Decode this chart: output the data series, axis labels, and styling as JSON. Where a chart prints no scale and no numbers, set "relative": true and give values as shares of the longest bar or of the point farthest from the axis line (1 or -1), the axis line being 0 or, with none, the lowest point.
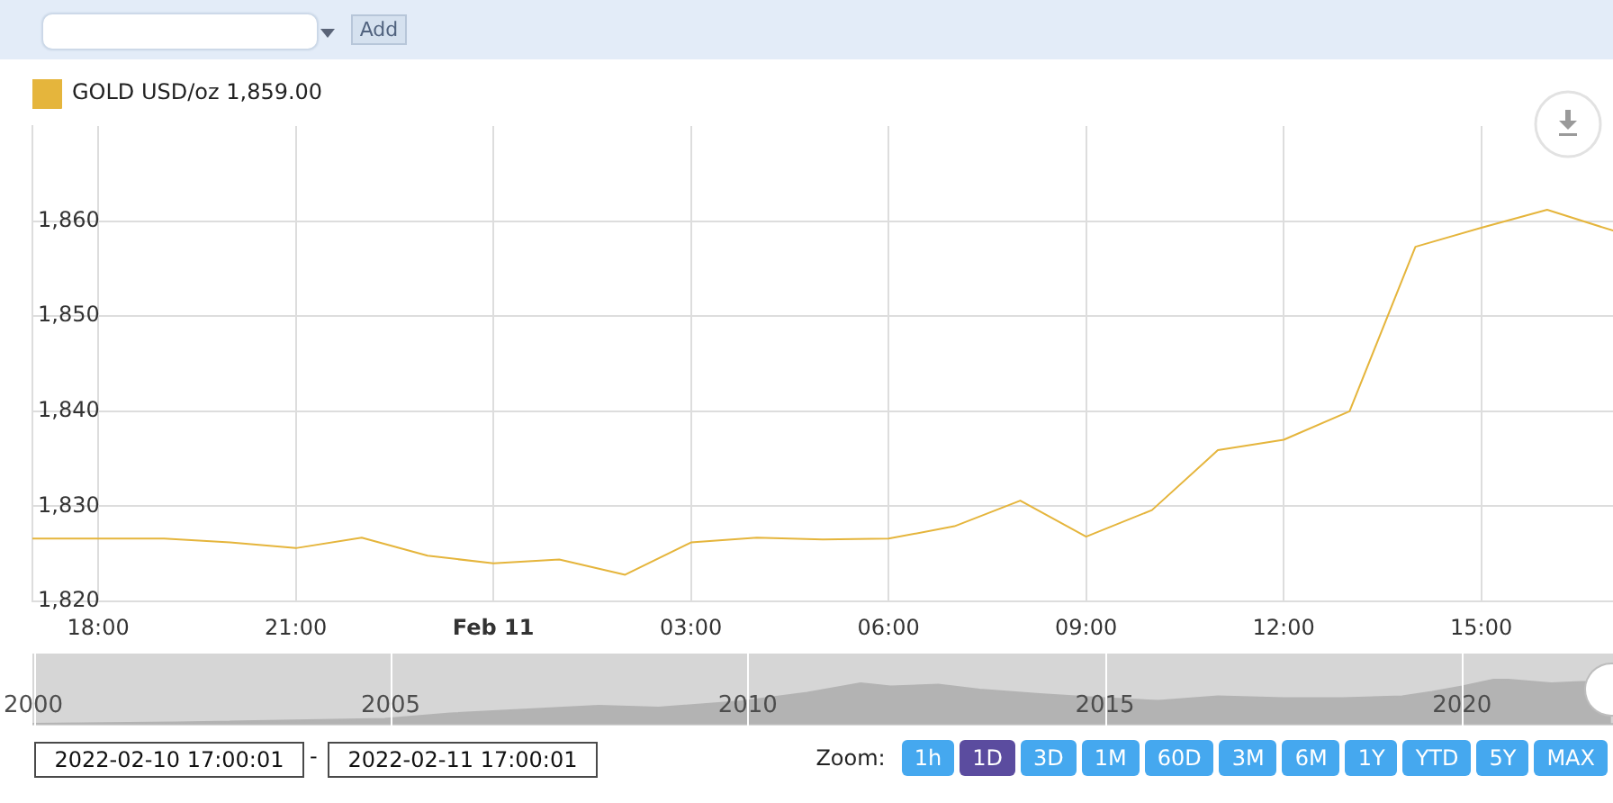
{
  "chart_data": [
    {
      "type": "line",
      "x": [
        "2022-02-10T17:00",
        "2022-02-10T18:00",
        "2022-02-10T19:00",
        "2022-02-10T20:00",
        "2022-02-10T21:00",
        "2022-02-10T22:00",
        "2022-02-10T23:00",
        "2022-02-11T00:00",
        "2022-02-11T01:00",
        "2022-02-11T02:00",
        "2022-02-11T03:00",
        "2022-02-11T04:00",
        "2022-02-11T05:00",
        "2022-02-11T06:00",
        "2022-02-11T07:00",
        "2022-02-11T08:00",
        "2022-02-11T09:00",
        "2022-02-11T10:00",
        "2022-02-11T11:00",
        "2022-02-11T12:00",
        "2022-02-11T13:00",
        "2022-02-11T14:00",
        "2022-02-11T15:00",
        "2022-02-11T16:00",
        "2022-02-11T17:00"
      ],
      "series": [
        {
          "name": "GOLD USD/oz 1,859.00",
          "color": "#e5b53c",
          "values": [
            1826.6,
            1826.6,
            1826.6,
            1826.2,
            1825.6,
            1826.7,
            1824.8,
            1824.0,
            1824.4,
            1822.8,
            1826.2,
            1826.7,
            1826.5,
            1826.6,
            1827.9,
            1830.6,
            1826.8,
            1829.6,
            1835.9,
            1837.0,
            1840.0,
            1857.3,
            1859.3,
            1861.2,
            1859.0
          ]
        }
      ],
      "xlim": [
        "2022-02-10T17:00",
        "2022-02-11T17:00"
      ],
      "xticks": [
        {
          "value": "2022-02-10T18:00",
          "label": "18:00"
        },
        {
          "value": "2022-02-10T21:00",
          "label": "21:00"
        },
        {
          "value": "2022-02-11T00:00",
          "label": "Feb 11"
        },
        {
          "value": "2022-02-11T03:00",
          "label": "03:00"
        },
        {
          "value": "2022-02-11T06:00",
          "label": "06:00"
        },
        {
          "value": "2022-02-11T09:00",
          "label": "09:00"
        },
        {
          "value": "2022-02-11T12:00",
          "label": "12:00"
        },
        {
          "value": "2022-02-11T15:00",
          "label": "15:00"
        }
      ],
      "ylim": [
        1820,
        1870
      ],
      "yticks": [
        {
          "value": 1820,
          "label": "1,820"
        },
        {
          "value": 1830,
          "label": "1,830"
        },
        {
          "value": 1840,
          "label": "1,840"
        },
        {
          "value": 1850,
          "label": "1,850"
        },
        {
          "value": 1860,
          "label": "1,860"
        }
      ],
      "grid": true,
      "legend": "top left",
      "marker": "none",
      "annotations": [
        "Add"
      ]
    },
    {
      "type": "area",
      "relative": true,
      "x": [
        "2000-01",
        "2002-01",
        "2004-12",
        "2005-11",
        "2007-12",
        "2008-10",
        "2009-12",
        "2010-11",
        "2011-08",
        "2012-01",
        "2012-09",
        "2013-04",
        "2014-02",
        "2015-01",
        "2015-10",
        "2016-08",
        "2017-07",
        "2018-05",
        "2019-03",
        "2019-08",
        "2020-01",
        "2020-07",
        "2021-04",
        "2021-09",
        "2022-02"
      ],
      "values": [
        0.0,
        0.03,
        0.11,
        0.23,
        0.4,
        0.36,
        0.5,
        0.69,
        0.9,
        0.83,
        0.87,
        0.76,
        0.66,
        0.57,
        0.51,
        0.61,
        0.57,
        0.57,
        0.61,
        0.71,
        0.83,
        1.0,
        0.9,
        0.93,
        0.93
      ],
      "color": "#b3b3b3",
      "xlim": [
        "2000-01-01",
        "2022-02-11"
      ],
      "xticks": [
        "2000",
        "2005",
        "2010",
        "2015",
        "2020"
      ],
      "grid": "x",
      "annotations": [
        "2022-02-10 17:00:01",
        "-",
        "2022-02-11 17:00:01",
        "Zoom:",
        "1h",
        "1D",
        "3D",
        "1M",
        "60D",
        "3M",
        "6M",
        "1Y",
        "YTD",
        "5Y",
        "MAX"
      ]
    }
  ]
}
